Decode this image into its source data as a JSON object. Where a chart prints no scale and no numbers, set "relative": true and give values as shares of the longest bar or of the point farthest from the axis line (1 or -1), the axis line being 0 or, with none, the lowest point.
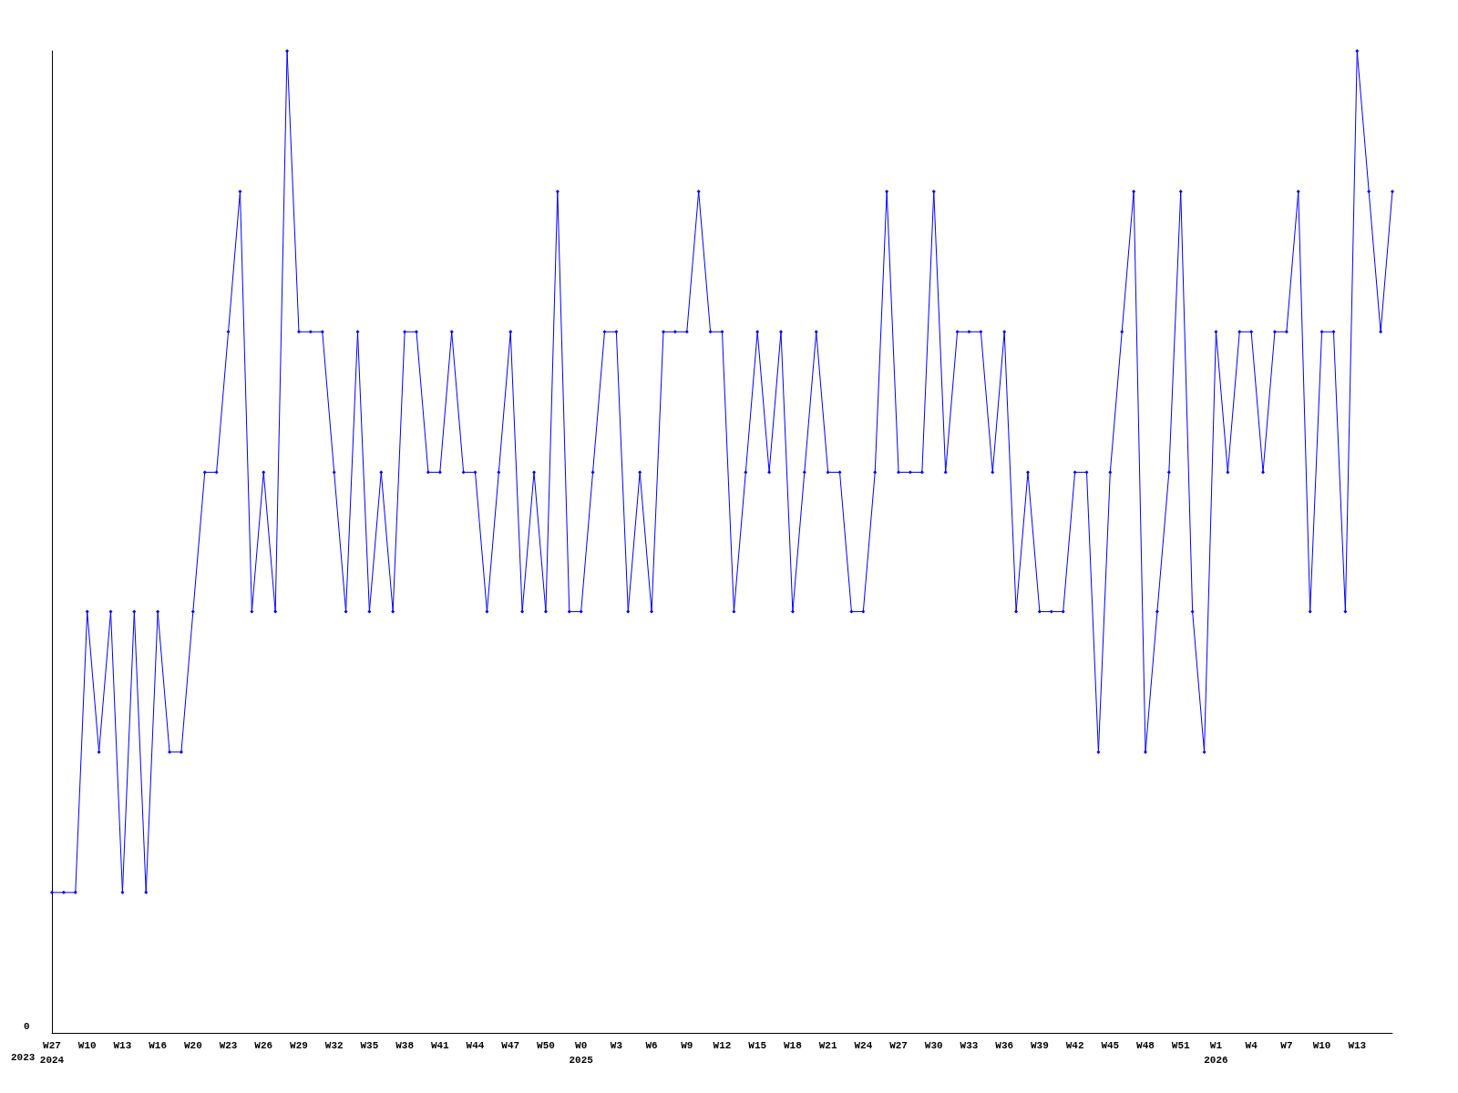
{
  "chart_data": {
    "type": "line",
    "relative": true,
    "marker": "diamond",
    "line_style": "solid",
    "grid": false,
    "categories": [
      "W27\n2024",
      null,
      null,
      "W10",
      null,
      null,
      "W13",
      null,
      null,
      "W16",
      null,
      null,
      "W20",
      null,
      null,
      "W23",
      null,
      null,
      "W26",
      null,
      null,
      "W29",
      null,
      null,
      "W32",
      null,
      null,
      "W35",
      null,
      null,
      "W38",
      null,
      null,
      "W41",
      null,
      null,
      "W44",
      null,
      null,
      "W47",
      null,
      null,
      "W50",
      null,
      null,
      "W0\n2025",
      null,
      null,
      "W3",
      null,
      null,
      "W6",
      null,
      null,
      "W9",
      null,
      null,
      "W12",
      null,
      null,
      "W15",
      null,
      null,
      "W18",
      null,
      null,
      "W21",
      null,
      null,
      "W24",
      null,
      null,
      "W27",
      null,
      null,
      "W30",
      null,
      null,
      "W33",
      null,
      null,
      "W36",
      null,
      null,
      "W39",
      null,
      null,
      "W42",
      null,
      null,
      "W45",
      null,
      null,
      "W48",
      null,
      null,
      "W51",
      null,
      null,
      "W1\n2026",
      null,
      null,
      "W4",
      null,
      null,
      "W7",
      null,
      null,
      "W10",
      null,
      null,
      "W13",
      null,
      null,
      null
    ],
    "series": [
      {
        "color": "#0000ff",
        "values": [
          0.143,
          0.143,
          0.143,
          0.429,
          0.286,
          0.429,
          0.143,
          0.429,
          0.143,
          0.429,
          0.286,
          0.286,
          0.429,
          0.571,
          0.571,
          0.714,
          0.857,
          0.429,
          0.571,
          0.429,
          1,
          0.714,
          0.714,
          0.714,
          0.571,
          0.429,
          0.714,
          0.429,
          0.571,
          0.429,
          0.714,
          0.714,
          0.571,
          0.571,
          0.714,
          0.571,
          0.571,
          0.429,
          0.571,
          0.714,
          0.429,
          0.571,
          0.429,
          0.857,
          0.429,
          0.429,
          0.571,
          0.714,
          0.714,
          0.429,
          0.571,
          0.429,
          0.714,
          0.714,
          0.714,
          0.857,
          0.714,
          0.714,
          0.429,
          0.571,
          0.714,
          0.571,
          0.714,
          0.429,
          0.571,
          0.714,
          0.571,
          0.571,
          0.429,
          0.429,
          0.571,
          0.857,
          0.571,
          0.571,
          0.571,
          0.857,
          0.571,
          0.714,
          0.714,
          0.714,
          0.571,
          0.714,
          0.429,
          0.571,
          0.429,
          0.429,
          0.429,
          0.571,
          0.571,
          0.286,
          0.571,
          0.714,
          0.857,
          0.286,
          0.429,
          0.571,
          0.857,
          0.429,
          0.286,
          0.714,
          0.571,
          0.714,
          0.714,
          0.571,
          0.714,
          0.714,
          0.857,
          0.429,
          0.714,
          0.714,
          0.429,
          1,
          0.857,
          0.714,
          0.857
        ]
      }
    ],
    "annotations": [
      "0",
      "2023"
    ]
  }
}
